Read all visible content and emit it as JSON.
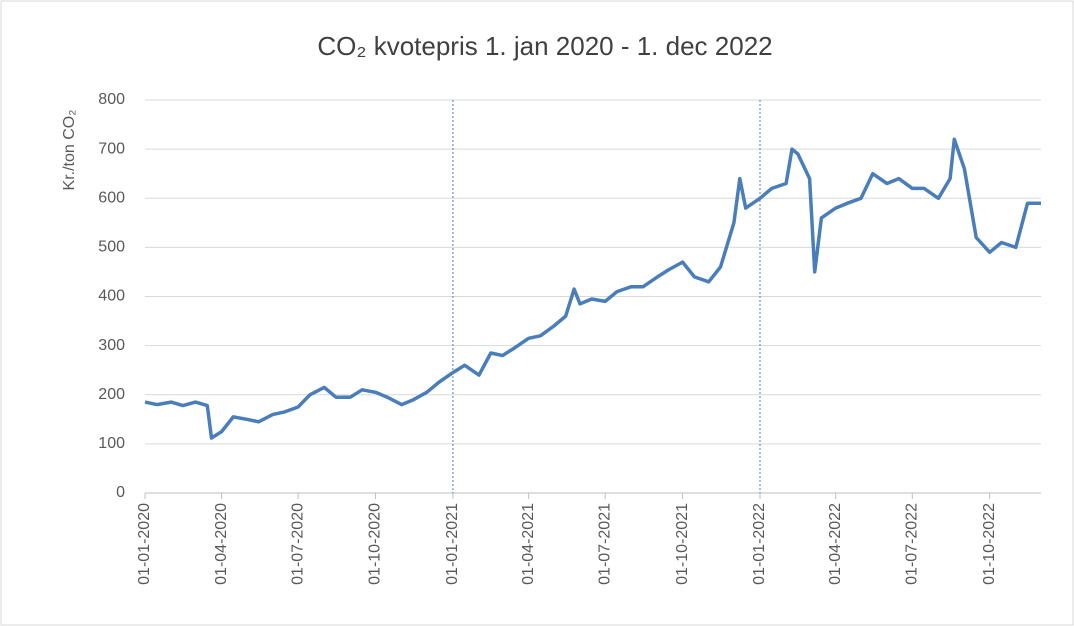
{
  "chart_data": {
    "type": "line",
    "title": "CO₂ kvotepris 1. jan 2020 - 1. dec 2022",
    "y_label": "Kr./ton CO₂",
    "x": [
      "01-01-2020",
      "15-01-2020",
      "01-02-2020",
      "15-02-2020",
      "01-03-2020",
      "15-03-2020",
      "20-03-2020",
      "01-04-2020",
      "15-04-2020",
      "01-05-2020",
      "15-05-2020",
      "01-06-2020",
      "15-06-2020",
      "01-07-2020",
      "15-07-2020",
      "01-08-2020",
      "15-08-2020",
      "01-09-2020",
      "15-09-2020",
      "01-10-2020",
      "15-10-2020",
      "01-11-2020",
      "15-11-2020",
      "01-12-2020",
      "15-12-2020",
      "01-01-2021",
      "15-01-2021",
      "01-02-2021",
      "15-02-2021",
      "01-03-2021",
      "15-03-2021",
      "01-04-2021",
      "15-04-2021",
      "01-05-2021",
      "15-05-2021",
      "25-05-2021",
      "01-06-2021",
      "15-06-2021",
      "01-07-2021",
      "15-07-2021",
      "01-08-2021",
      "15-08-2021",
      "01-09-2021",
      "15-09-2021",
      "01-10-2021",
      "15-10-2021",
      "01-11-2021",
      "15-11-2021",
      "01-12-2021",
      "08-12-2021",
      "15-12-2021",
      "01-01-2022",
      "15-01-2022",
      "01-02-2022",
      "08-02-2022",
      "15-02-2022",
      "01-03-2022",
      "07-03-2022",
      "15-03-2022",
      "01-04-2022",
      "15-04-2022",
      "01-05-2022",
      "15-05-2022",
      "01-06-2022",
      "15-06-2022",
      "01-07-2022",
      "15-07-2022",
      "01-08-2022",
      "15-08-2022",
      "20-08-2022",
      "01-09-2022",
      "15-09-2022",
      "01-10-2022",
      "15-10-2022",
      "01-11-2022",
      "15-11-2022",
      "01-12-2022"
    ],
    "series": [
      {
        "name": "CO₂ kvotepris",
        "color": "#4a7ebb",
        "values": [
          185,
          180,
          185,
          178,
          185,
          178,
          112,
          125,
          155,
          150,
          145,
          160,
          165,
          175,
          200,
          215,
          195,
          195,
          210,
          205,
          195,
          180,
          190,
          205,
          225,
          245,
          260,
          240,
          285,
          280,
          295,
          315,
          320,
          340,
          360,
          415,
          385,
          395,
          390,
          410,
          420,
          420,
          440,
          455,
          470,
          440,
          430,
          460,
          550,
          640,
          580,
          600,
          620,
          630,
          700,
          690,
          640,
          450,
          560,
          580,
          590,
          600,
          650,
          630,
          640,
          620,
          620,
          600,
          640,
          720,
          660,
          520,
          490,
          510,
          500,
          590,
          590
        ]
      }
    ],
    "xlim": [
      "01-01-2020",
      "01-12-2022"
    ],
    "xticks": [
      "01-01-2020",
      "01-04-2020",
      "01-07-2020",
      "01-10-2020",
      "01-01-2021",
      "01-04-2021",
      "01-07-2021",
      "01-10-2021",
      "01-01-2022",
      "01-04-2022",
      "01-07-2022",
      "01-10-2022"
    ],
    "vlines": [
      "01-01-2021",
      "01-01-2022"
    ],
    "ylim": [
      0,
      800
    ],
    "yticks": [
      0,
      100,
      200,
      300,
      400,
      500,
      600,
      700,
      800
    ],
    "grid": true
  }
}
